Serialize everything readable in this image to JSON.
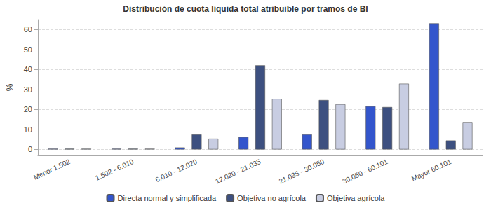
{
  "chart_data": {
    "type": "bar",
    "title": "Distribución de cuota líquida total atribuible por tramos de BI",
    "y_label": "%",
    "categories": [
      "Menor 1.502",
      "1.502 - 6.010",
      "6.010 - 12.020",
      "12.020 - 21.035",
      "21.035 - 30.050",
      "30.050 - 60.101",
      "Mayor 60.101"
    ],
    "series": [
      {
        "name": "Directa normal y simplificada",
        "color": "#3355cc",
        "values": [
          0,
          0,
          1.0,
          6.2,
          7.5,
          21.6,
          63.1
        ]
      },
      {
        "name": "Objetiva no agrícola",
        "color": "#3d5080",
        "values": [
          0,
          0,
          7.5,
          42.1,
          24.7,
          21.2,
          4.5
        ]
      },
      {
        "name": "Objetiva agrícola",
        "color": "#c8cde2",
        "values": [
          0,
          0,
          5.4,
          25.3,
          22.6,
          32.9,
          13.7
        ]
      }
    ],
    "ylim": [
      -3,
      65
    ],
    "yticks": [
      0,
      10,
      20,
      30,
      40,
      50,
      60
    ],
    "grid": true,
    "legend": "bottom"
  }
}
